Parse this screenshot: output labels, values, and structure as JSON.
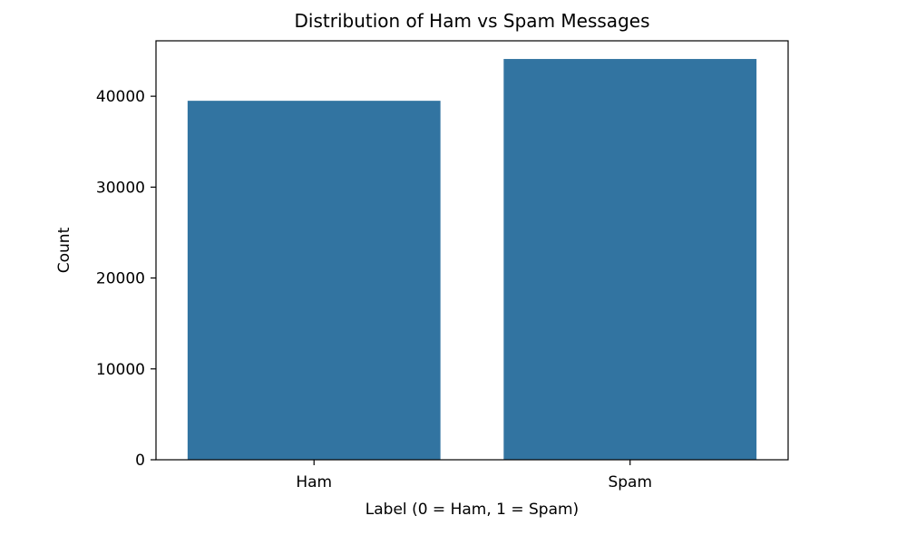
{
  "chart_data": {
    "type": "bar",
    "title": "Distribution of Ham vs Spam Messages",
    "xlabel": "Label (0 = Ham, 1 = Spam)",
    "ylabel": "Count",
    "categories": [
      "Ham",
      "Spam"
    ],
    "values": [
      39500,
      44100
    ],
    "ylim": [
      0,
      46100
    ],
    "yticks": [
      0,
      10000,
      20000,
      30000,
      40000
    ],
    "ytick_labels": [
      "0",
      "10000",
      "20000",
      "30000",
      "40000"
    ],
    "grid": false,
    "legend": "none",
    "bar_color": "#3274a1"
  }
}
